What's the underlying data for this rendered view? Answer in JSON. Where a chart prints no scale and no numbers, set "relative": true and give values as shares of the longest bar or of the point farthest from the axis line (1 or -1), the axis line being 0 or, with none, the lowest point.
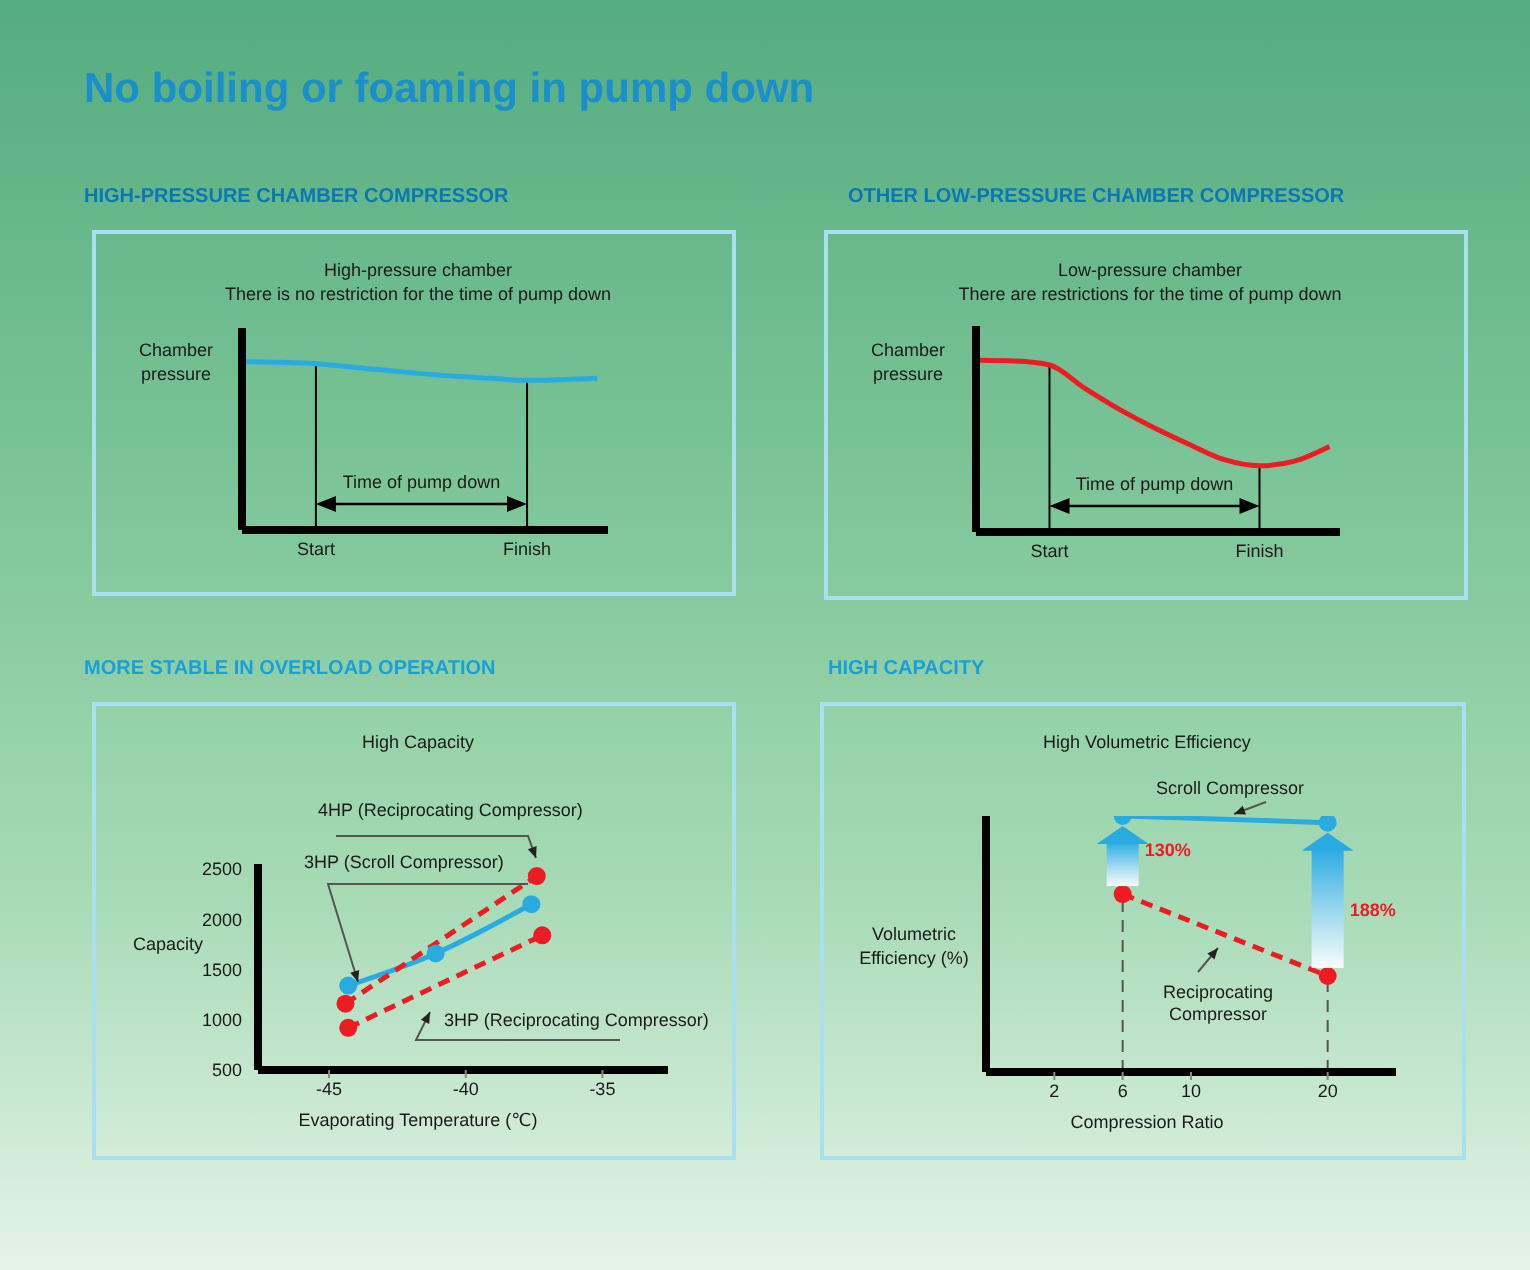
{
  "chart_data": [
    {
      "type": "line",
      "relative": true,
      "title": "HIGH-PRESSURE CHAMBER COMPRESSOR",
      "subtitle": "High-pressure chamber\nThere is no restriction for the time of pump down",
      "ylabel": "Chamber pressure",
      "categories": [
        null,
        null,
        "Start",
        null,
        null,
        null,
        null,
        null,
        "Finish",
        null,
        null
      ],
      "series": [
        {
          "color": "#29abe2",
          "values": [
            1,
            0.996,
            0.988,
            0.968,
            0.949,
            0.929,
            0.913,
            0.901,
            0.889,
            0.893,
            0.901
          ]
        }
      ],
      "ref_lines": [
        {
          "axis": "x",
          "value": "Start",
          "color": "#000000"
        },
        {
          "axis": "x",
          "value": "Finish",
          "color": "#000000"
        }
      ],
      "annotations": [
        "No boiling or foaming in pump down",
        "Time of pump down"
      ],
      "tick_labels": "x",
      "marker": "none",
      "line_style": "solid"
    },
    {
      "type": "line",
      "relative": true,
      "title": "OTHER LOW-PRESSURE CHAMBER COMPRESSOR",
      "subtitle": "Low-pressure chamber\nThere are restrictions for the time of pump down",
      "ylabel": "Chamber pressure",
      "categories": [
        null,
        null,
        "Start",
        null,
        null,
        null,
        null,
        null,
        "Finish",
        null,
        null
      ],
      "series": [
        {
          "color": "#ed1c24",
          "values": [
            1,
            0.996,
            0.973,
            0.838,
            0.714,
            0.606,
            0.51,
            0.421,
            0.386,
            0.413,
            0.498
          ]
        }
      ],
      "ref_lines": [
        {
          "axis": "x",
          "value": "Start",
          "color": "#000000"
        },
        {
          "axis": "x",
          "value": "Finish",
          "color": "#000000"
        }
      ],
      "annotations": [
        "Time of pump down"
      ],
      "tick_labels": "x",
      "marker": "none",
      "line_style": "solid"
    },
    {
      "type": "line",
      "title": "MORE STABLE IN OVERLOAD OPERATION",
      "subtitle": "High Capacity",
      "xlabel": "Evaporating Temperature (℃)",
      "ylabel": "Capacity",
      "xlim": [
        -47.6,
        -32.6
      ],
      "xticks": [
        -45,
        -40,
        -35
      ],
      "ylim": [
        500,
        2550
      ],
      "yticks": [
        500,
        1000,
        1500,
        2000,
        2500
      ],
      "marker": "circle",
      "series": [
        {
          "name": "3HP (Scroll Compressor)",
          "color": "#29abe2",
          "line_style": "solid",
          "x": [
            -44.3,
            -41.1,
            -37.6
          ],
          "values": [
            1340,
            1660,
            2150
          ]
        },
        {
          "name": "4HP (Reciprocating Compressor)",
          "color": "#ed1c24",
          "line_style": "dashed",
          "x": [
            -44.4,
            -37.4
          ],
          "values": [
            1160,
            2430
          ]
        },
        {
          "name": "3HP (Reciprocating Compressor)",
          "color": "#ed1c24",
          "line_style": "dashed",
          "x": [
            -44.3,
            -37.2
          ],
          "values": [
            920,
            1840
          ]
        }
      ]
    },
    {
      "type": "line",
      "relative": true,
      "title": "HIGH CAPACITY",
      "subtitle": "High Volumetric Efficiency",
      "xlabel": "Compression Ratio",
      "ylabel": "Volumetric Efficiency (%)",
      "categories": [
        "2",
        "6",
        "10",
        null,
        "20"
      ],
      "tick_labels": "x",
      "marker": "circle",
      "series": [
        {
          "name": "Scroll Compressor",
          "color": "#29abe2",
          "line_style": "solid",
          "values": [
            null,
            1,
            null,
            null,
            0.974
          ]
        },
        {
          "name": "Reciprocating Compressor",
          "color": "#ed1c24",
          "line_style": "dashed",
          "values": [
            null,
            0.695,
            null,
            null,
            0.375
          ]
        }
      ],
      "ref_lines": [
        {
          "axis": "x",
          "value": "6",
          "color": "#555555",
          "line_style": "dashed"
        },
        {
          "axis": "x",
          "value": "20",
          "color": "#555555",
          "line_style": "dashed"
        }
      ],
      "annotations": [
        "130%",
        "188%"
      ]
    }
  ]
}
